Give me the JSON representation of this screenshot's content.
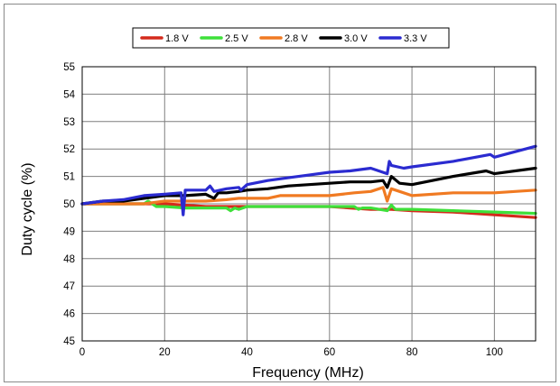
{
  "chart_data": {
    "type": "line",
    "title": "",
    "xlabel": "Frequency (MHz)",
    "ylabel": "Duty cycle (%)",
    "xlim": [
      0,
      110
    ],
    "ylim": [
      45,
      55
    ],
    "xticks": [
      0,
      20,
      40,
      60,
      80,
      100
    ],
    "yticks": [
      45,
      46,
      47,
      48,
      49,
      50,
      51,
      52,
      53,
      54,
      55
    ],
    "grid": true,
    "legend_position": "top",
    "series": [
      {
        "name": "1.8 V",
        "color": "#d42a1c",
        "x": [
          0,
          5,
          10,
          20,
          30,
          40,
          50,
          60,
          65,
          70,
          75,
          80,
          90,
          100,
          110
        ],
        "y": [
          50,
          50,
          50,
          50,
          49.9,
          49.9,
          49.9,
          49.9,
          49.85,
          49.8,
          49.8,
          49.75,
          49.7,
          49.6,
          49.5
        ]
      },
      {
        "name": "2.5 V",
        "color": "#3ee03a",
        "x": [
          0,
          10,
          15,
          16,
          18,
          20,
          25,
          30,
          35,
          36,
          37,
          38,
          40,
          50,
          60,
          66,
          67,
          68,
          70,
          74,
          75,
          76,
          80,
          90,
          100,
          110
        ],
        "y": [
          50,
          50,
          50,
          50.1,
          49.9,
          49.9,
          49.85,
          49.85,
          49.85,
          49.75,
          49.85,
          49.8,
          49.9,
          49.9,
          49.9,
          49.9,
          49.8,
          49.85,
          49.85,
          49.75,
          49.95,
          49.8,
          49.8,
          49.75,
          49.7,
          49.65
        ]
      },
      {
        "name": "2.8 V",
        "color": "#f07a22",
        "x": [
          0,
          10,
          15,
          20,
          25,
          30,
          35,
          38,
          40,
          45,
          48,
          55,
          60,
          66,
          70,
          73,
          74,
          75,
          77,
          80,
          90,
          100,
          110
        ],
        "y": [
          50,
          50,
          50,
          50.1,
          50.1,
          50.1,
          50.15,
          50.2,
          50.2,
          50.2,
          50.3,
          50.3,
          50.3,
          50.4,
          50.45,
          50.6,
          50.1,
          50.55,
          50.45,
          50.3,
          50.4,
          50.4,
          50.5
        ]
      },
      {
        "name": "3.0 V",
        "color": "#000000",
        "x": [
          0,
          5,
          10,
          15,
          20,
          25,
          30,
          32,
          33,
          35,
          38,
          40,
          45,
          50,
          55,
          60,
          65,
          70,
          73,
          74,
          75,
          77,
          80,
          90,
          98,
          100,
          110
        ],
        "y": [
          50,
          50.1,
          50.1,
          50.2,
          50.3,
          50.3,
          50.35,
          50.2,
          50.4,
          50.4,
          50.45,
          50.5,
          50.55,
          50.65,
          50.7,
          50.75,
          50.8,
          50.8,
          50.85,
          50.6,
          51.0,
          50.75,
          50.7,
          51.0,
          51.2,
          51.1,
          51.3
        ]
      },
      {
        "name": "3.3 V",
        "color": "#2b2bd0",
        "x": [
          0,
          5,
          10,
          15,
          20,
          24,
          24.5,
          25,
          30,
          31,
          32,
          35,
          38,
          38.5,
          40,
          45,
          50,
          55,
          60,
          65,
          70,
          74,
          74.5,
          75,
          78,
          80,
          90,
          99,
          100,
          110
        ],
        "y": [
          50,
          50.1,
          50.15,
          50.3,
          50.35,
          50.4,
          49.6,
          50.5,
          50.5,
          50.65,
          50.45,
          50.55,
          50.6,
          50.5,
          50.7,
          50.85,
          50.95,
          51.05,
          51.15,
          51.2,
          51.3,
          51.1,
          51.55,
          51.4,
          51.3,
          51.35,
          51.55,
          51.8,
          51.7,
          52.1
        ]
      }
    ]
  }
}
